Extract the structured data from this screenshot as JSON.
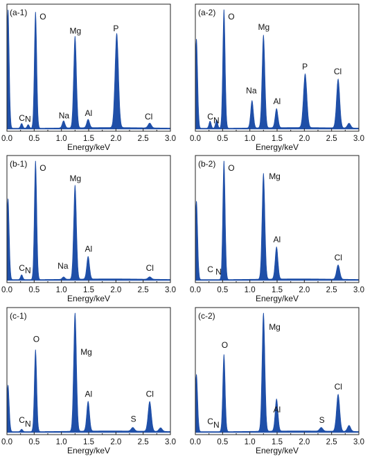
{
  "chart_data": [
    {
      "type": "area",
      "panel": "(a-1)",
      "xlabel": "Energy/keV",
      "xlim": [
        0,
        3.0
      ],
      "xticks": [
        "0.0",
        "0.5",
        "1.0",
        "1.5",
        "2.0",
        "2.5",
        "3.0"
      ],
      "series_color": "#1f4fa8",
      "peaks": [
        {
          "element": "",
          "x": 0.02,
          "y": 100,
          "w": 0.022
        },
        {
          "element": "C",
          "x": 0.27,
          "y": 4,
          "w": 0.02
        },
        {
          "element": "N",
          "x": 0.39,
          "y": 3,
          "w": 0.02
        },
        {
          "element": "O",
          "x": 0.525,
          "y": 98,
          "w": 0.022
        },
        {
          "element": "Na",
          "x": 1.04,
          "y": 6,
          "w": 0.025
        },
        {
          "element": "Mg",
          "x": 1.25,
          "y": 77,
          "w": 0.026
        },
        {
          "element": "Al",
          "x": 1.49,
          "y": 7,
          "w": 0.026
        },
        {
          "element": "P",
          "x": 2.015,
          "y": 79,
          "w": 0.032
        },
        {
          "element": "Cl",
          "x": 2.62,
          "y": 4,
          "w": 0.03
        }
      ],
      "labels": [
        {
          "text": "O",
          "x": 0.6,
          "y": 92
        },
        {
          "text": "Mg",
          "x": 1.15,
          "y": 80
        },
        {
          "text": "P",
          "x": 1.95,
          "y": 82
        },
        {
          "text": "C",
          "x": 0.22,
          "y": 7
        },
        {
          "text": "N",
          "x": 0.33,
          "y": 6
        },
        {
          "text": "Na",
          "x": 0.95,
          "y": 9
        },
        {
          "text": "Al",
          "x": 1.43,
          "y": 11
        },
        {
          "text": "Cl",
          "x": 2.53,
          "y": 8
        }
      ]
    },
    {
      "type": "area",
      "panel": "(a-2)",
      "xlabel": "Energy/keV",
      "xlim": [
        0,
        3.0
      ],
      "xticks": [
        "0.0",
        "0.5",
        "1.0",
        "1.5",
        "2.0",
        "2.5",
        "3.0"
      ],
      "series_color": "#1f4fa8",
      "peaks": [
        {
          "element": "",
          "x": 0.02,
          "y": 75,
          "w": 0.022
        },
        {
          "element": "C",
          "x": 0.27,
          "y": 6,
          "w": 0.02
        },
        {
          "element": "N",
          "x": 0.39,
          "y": 7,
          "w": 0.02
        },
        {
          "element": "O",
          "x": 0.525,
          "y": 100,
          "w": 0.022
        },
        {
          "element": "Na",
          "x": 1.04,
          "y": 23,
          "w": 0.025
        },
        {
          "element": "Mg",
          "x": 1.25,
          "y": 78,
          "w": 0.026
        },
        {
          "element": "Al",
          "x": 1.49,
          "y": 16,
          "w": 0.026
        },
        {
          "element": "P",
          "x": 2.015,
          "y": 45,
          "w": 0.032
        },
        {
          "element": "Cl",
          "x": 2.62,
          "y": 41,
          "w": 0.03
        },
        {
          "element": "",
          "x": 2.82,
          "y": 4,
          "w": 0.03
        }
      ],
      "labels": [
        {
          "text": "O",
          "x": 0.6,
          "y": 92
        },
        {
          "text": "Mg",
          "x": 1.15,
          "y": 83
        },
        {
          "text": "Na",
          "x": 0.93,
          "y": 30
        },
        {
          "text": "Al",
          "x": 1.43,
          "y": 21
        },
        {
          "text": "P",
          "x": 1.96,
          "y": 50
        },
        {
          "text": "Cl",
          "x": 2.54,
          "y": 46
        },
        {
          "text": "C",
          "x": 0.22,
          "y": 8
        },
        {
          "text": "N",
          "x": 0.33,
          "y": 5
        }
      ]
    },
    {
      "type": "area",
      "panel": "(b-1)",
      "xlabel": "Energy/keV",
      "xlim": [
        0,
        3.0
      ],
      "xticks": [
        "0.0",
        "0.5",
        "1.0",
        "1.5",
        "2.0",
        "2.5",
        "3.0"
      ],
      "series_color": "#1f4fa8",
      "peaks": [
        {
          "element": "",
          "x": 0.02,
          "y": 68,
          "w": 0.022
        },
        {
          "element": "C",
          "x": 0.27,
          "y": 4,
          "w": 0.02
        },
        {
          "element": "O",
          "x": 0.525,
          "y": 100,
          "w": 0.022
        },
        {
          "element": "Na",
          "x": 1.04,
          "y": 2,
          "w": 0.025
        },
        {
          "element": "Mg",
          "x": 1.25,
          "y": 79,
          "w": 0.026
        },
        {
          "element": "Al",
          "x": 1.49,
          "y": 19,
          "w": 0.026
        },
        {
          "element": "Cl",
          "x": 2.62,
          "y": 2,
          "w": 0.03
        }
      ],
      "labels": [
        {
          "text": "O",
          "x": 0.6,
          "y": 92
        },
        {
          "text": "Mg",
          "x": 1.15,
          "y": 83
        },
        {
          "text": "Al",
          "x": 1.43,
          "y": 24
        },
        {
          "text": "Na",
          "x": 0.93,
          "y": 10
        },
        {
          "text": "C",
          "x": 0.22,
          "y": 8
        },
        {
          "text": "N",
          "x": 0.33,
          "y": 6
        },
        {
          "text": "Cl",
          "x": 2.55,
          "y": 8
        }
      ]
    },
    {
      "type": "area",
      "panel": "(b-2)",
      "xlabel": "Energy/keV",
      "xlim": [
        0,
        3.0
      ],
      "xticks": [
        "0.0",
        "0.5",
        "1.0",
        "1.5",
        "2.0",
        "2.5",
        "3.0"
      ],
      "series_color": "#1f4fa8",
      "peaks": [
        {
          "element": "",
          "x": 0.02,
          "y": 66,
          "w": 0.022
        },
        {
          "element": "O",
          "x": 0.525,
          "y": 100,
          "w": 0.022
        },
        {
          "element": "Mg",
          "x": 1.25,
          "y": 89,
          "w": 0.026
        },
        {
          "element": "Al",
          "x": 1.49,
          "y": 27,
          "w": 0.026
        },
        {
          "element": "Cl",
          "x": 2.62,
          "y": 12,
          "w": 0.03
        }
      ],
      "labels": [
        {
          "text": "O",
          "x": 0.6,
          "y": 92
        },
        {
          "text": "Mg",
          "x": 1.35,
          "y": 85
        },
        {
          "text": "Al",
          "x": 1.43,
          "y": 32
        },
        {
          "text": "Cl",
          "x": 2.55,
          "y": 17
        },
        {
          "text": "C",
          "x": 0.22,
          "y": 7
        },
        {
          "text": "N",
          "x": 0.37,
          "y": 5
        }
      ]
    },
    {
      "type": "area",
      "panel": "(c-1)",
      "xlabel": "Energy/keV",
      "xlim": [
        0,
        3.0
      ],
      "xticks": [
        "0.0",
        "0.5",
        "1.0",
        "1.5",
        "2.0",
        "2.5",
        "3.0"
      ],
      "series_color": "#1f4fa8",
      "peaks": [
        {
          "element": "",
          "x": 0.02,
          "y": 39,
          "w": 0.022
        },
        {
          "element": "C",
          "x": 0.27,
          "y": 2,
          "w": 0.02
        },
        {
          "element": "O",
          "x": 0.525,
          "y": 69,
          "w": 0.022
        },
        {
          "element": "Mg",
          "x": 1.25,
          "y": 100,
          "w": 0.026
        },
        {
          "element": "Al",
          "x": 1.49,
          "y": 25,
          "w": 0.026
        },
        {
          "element": "S",
          "x": 2.31,
          "y": 3,
          "w": 0.03
        },
        {
          "element": "Cl",
          "x": 2.62,
          "y": 25,
          "w": 0.03
        },
        {
          "element": "",
          "x": 2.82,
          "y": 3,
          "w": 0.03
        }
      ],
      "labels": [
        {
          "text": "O",
          "x": 0.48,
          "y": 76
        },
        {
          "text": "Mg",
          "x": 1.35,
          "y": 65
        },
        {
          "text": "Al",
          "x": 1.43,
          "y": 30
        },
        {
          "text": "Cl",
          "x": 2.55,
          "y": 30
        },
        {
          "text": "S",
          "x": 2.27,
          "y": 9
        },
        {
          "text": "C",
          "x": 0.22,
          "y": 8
        },
        {
          "text": "N",
          "x": 0.33,
          "y": 5
        }
      ]
    },
    {
      "type": "area",
      "panel": "(c-2)",
      "xlabel": "Energy/keV",
      "xlim": [
        0,
        3.0
      ],
      "xticks": [
        "0.0",
        "0.5",
        "1.0",
        "1.5",
        "2.0",
        "2.5",
        "3.0"
      ],
      "series_color": "#1f4fa8",
      "peaks": [
        {
          "element": "",
          "x": 0.02,
          "y": 48,
          "w": 0.022
        },
        {
          "element": "O",
          "x": 0.525,
          "y": 65,
          "w": 0.022
        },
        {
          "element": "Mg",
          "x": 1.25,
          "y": 100,
          "w": 0.026
        },
        {
          "element": "Al",
          "x": 1.49,
          "y": 27,
          "w": 0.026
        },
        {
          "element": "S",
          "x": 2.31,
          "y": 3,
          "w": 0.03
        },
        {
          "element": "Cl",
          "x": 2.62,
          "y": 31,
          "w": 0.03
        },
        {
          "element": "",
          "x": 2.82,
          "y": 5,
          "w": 0.03
        }
      ],
      "labels": [
        {
          "text": "O",
          "x": 0.48,
          "y": 71
        },
        {
          "text": "Mg",
          "x": 1.35,
          "y": 86
        },
        {
          "text": "Al",
          "x": 1.43,
          "y": 17
        },
        {
          "text": "Cl",
          "x": 2.55,
          "y": 36
        },
        {
          "text": "S",
          "x": 2.27,
          "y": 8
        },
        {
          "text": "C",
          "x": 0.22,
          "y": 7
        },
        {
          "text": "N",
          "x": 0.33,
          "y": 4
        }
      ]
    }
  ]
}
